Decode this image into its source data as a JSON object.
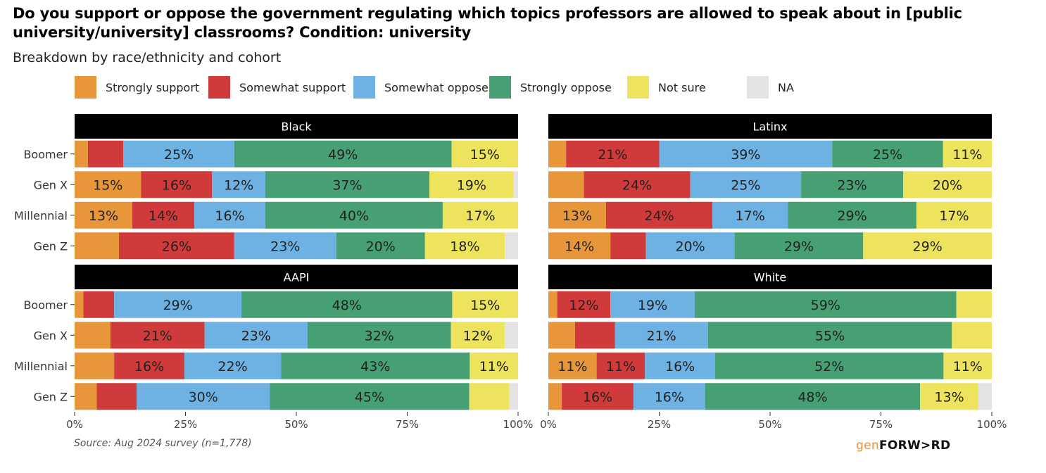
{
  "title": "Do you support or oppose the government regulating which topics professors are allowed to speak about in [public university/university] classrooms? Condition: university",
  "subtitle": "Breakdown by race/ethnicity and cohort",
  "source": "Source: Aug 2024 survey (n=1,778)",
  "logo": {
    "part1": "gen",
    "part2": "FORW>RD"
  },
  "chart_data": {
    "type": "bar",
    "orientation": "horizontal",
    "stacked": true,
    "legend_position": "top",
    "categories": [
      "Boomer",
      "Gen X",
      "Millennial",
      "Gen Z"
    ],
    "x_ticks": [
      "0%",
      "25%",
      "50%",
      "75%",
      "100%"
    ],
    "xlim": [
      0,
      100
    ],
    "series": [
      {
        "name": "Strongly support",
        "color": "#e8963a"
      },
      {
        "name": "Somewhat support",
        "color": "#d13a3a"
      },
      {
        "name": "Somewhat oppose",
        "color": "#6db2e3"
      },
      {
        "name": "Strongly oppose",
        "color": "#46a074"
      },
      {
        "name": "Not sure",
        "color": "#ede35c"
      },
      {
        "name": "NA",
        "color": "#e3e3e3"
      }
    ],
    "panels": [
      {
        "title": "Black",
        "rows": [
          {
            "category": "Boomer",
            "values": [
              3,
              8,
              25,
              49,
              15,
              0
            ],
            "labels": [
              "",
              "",
              "25%",
              "49%",
              "15%",
              ""
            ]
          },
          {
            "category": "Gen X",
            "values": [
              15,
              16,
              12,
              37,
              19,
              1
            ],
            "labels": [
              "15%",
              "16%",
              "12%",
              "37%",
              "19%",
              ""
            ]
          },
          {
            "category": "Millennial",
            "values": [
              13,
              14,
              16,
              40,
              17,
              0
            ],
            "labels": [
              "13%",
              "14%",
              "16%",
              "40%",
              "17%",
              ""
            ]
          },
          {
            "category": "Gen Z",
            "values": [
              10,
              26,
              23,
              20,
              18,
              3
            ],
            "labels": [
              "",
              "26%",
              "23%",
              "20%",
              "18%",
              ""
            ]
          }
        ]
      },
      {
        "title": "Latinx",
        "rows": [
          {
            "category": "Boomer",
            "values": [
              4,
              21,
              39,
              25,
              11,
              0
            ],
            "labels": [
              "",
              "21%",
              "39%",
              "25%",
              "11%",
              ""
            ]
          },
          {
            "category": "Gen X",
            "values": [
              8,
              24,
              25,
              23,
              20,
              0
            ],
            "labels": [
              "",
              "24%",
              "25%",
              "23%",
              "20%",
              ""
            ]
          },
          {
            "category": "Millennial",
            "values": [
              13,
              24,
              17,
              29,
              17,
              0
            ],
            "labels": [
              "13%",
              "24%",
              "17%",
              "29%",
              "17%",
              ""
            ]
          },
          {
            "category": "Gen Z",
            "values": [
              14,
              8,
              20,
              29,
              29,
              0
            ],
            "labels": [
              "14%",
              "",
              "20%",
              "29%",
              "29%",
              ""
            ]
          }
        ]
      },
      {
        "title": "AAPI",
        "rows": [
          {
            "category": "Boomer",
            "values": [
              2,
              7,
              29,
              48,
              15,
              0
            ],
            "labels": [
              "",
              "",
              "29%",
              "48%",
              "15%",
              ""
            ]
          },
          {
            "category": "Gen X",
            "values": [
              8,
              21,
              23,
              32,
              12,
              3
            ],
            "labels": [
              "",
              "21%",
              "23%",
              "32%",
              "12%",
              ""
            ]
          },
          {
            "category": "Millennial",
            "values": [
              9,
              16,
              22,
              43,
              11,
              0
            ],
            "labels": [
              "",
              "16%",
              "22%",
              "43%",
              "11%",
              ""
            ]
          },
          {
            "category": "Gen Z",
            "values": [
              5,
              9,
              30,
              45,
              9,
              2
            ],
            "labels": [
              "",
              "",
              "30%",
              "45%",
              "",
              ""
            ]
          }
        ]
      },
      {
        "title": "White",
        "rows": [
          {
            "category": "Boomer",
            "values": [
              2,
              12,
              19,
              59,
              8,
              0
            ],
            "labels": [
              "",
              "12%",
              "19%",
              "59%",
              "",
              ""
            ]
          },
          {
            "category": "Gen X",
            "values": [
              6,
              9,
              21,
              55,
              9,
              0
            ],
            "labels": [
              "",
              "",
              "21%",
              "55%",
              "",
              ""
            ]
          },
          {
            "category": "Millennial",
            "values": [
              11,
              11,
              16,
              52,
              11,
              0
            ],
            "labels": [
              "11%",
              "11%",
              "16%",
              "52%",
              "11%",
              ""
            ]
          },
          {
            "category": "Gen Z",
            "values": [
              3,
              16,
              16,
              48,
              13,
              3
            ],
            "labels": [
              "",
              "16%",
              "16%",
              "48%",
              "13%",
              ""
            ]
          }
        ]
      }
    ]
  }
}
